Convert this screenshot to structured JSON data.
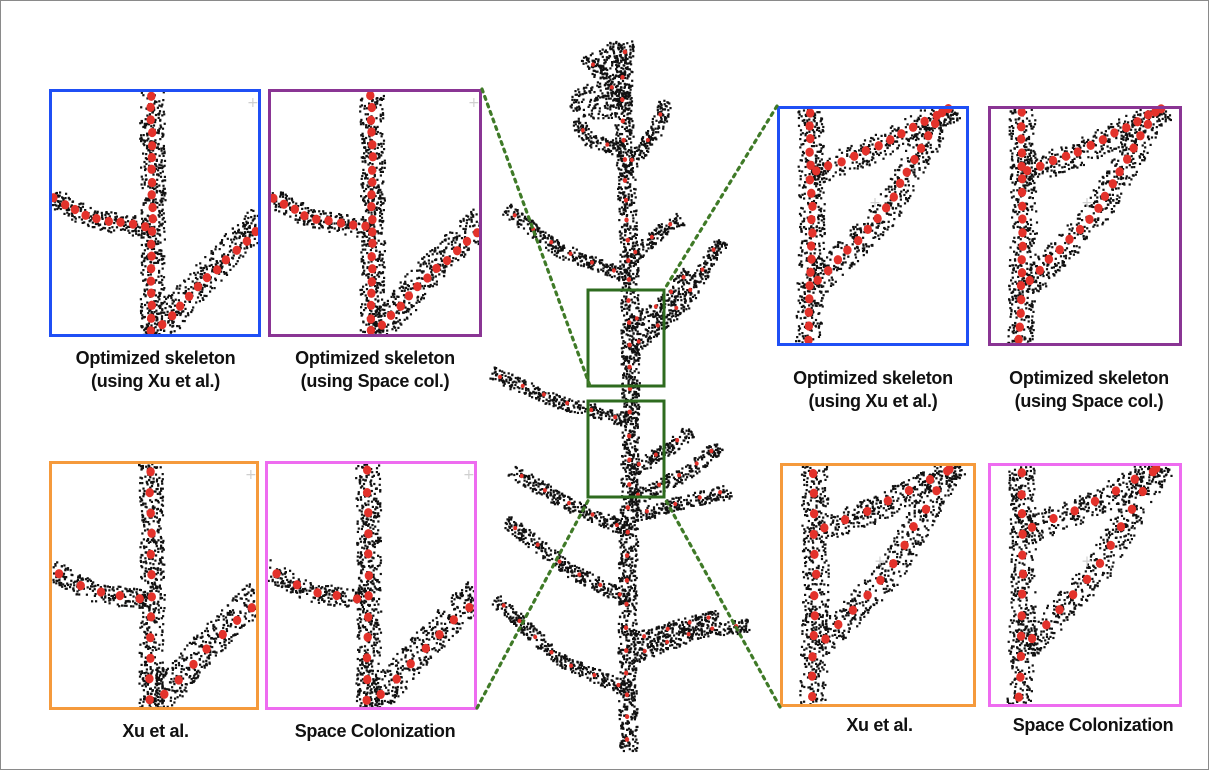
{
  "figure": {
    "left_group": {
      "top_row": [
        {
          "line1": "Optimized skeleton",
          "line2": "(using Xu et al.)",
          "frame_color": "#1f4ff5"
        },
        {
          "line1": "Optimized skeleton",
          "line2": "(using Space col.)",
          "frame_color": "#8a3594"
        }
      ],
      "bottom_row": [
        {
          "line1": "Xu et al.",
          "frame_color": "#f59a3c"
        },
        {
          "line1": "Space Colonization",
          "frame_color": "#ee6cf0"
        }
      ]
    },
    "right_group": {
      "top_row": [
        {
          "line1": "Optimized skeleton",
          "line2": "(using Xu et al.)",
          "frame_color": "#1f4ff5"
        },
        {
          "line1": "Optimized skeleton",
          "line2": "(using Space col.)",
          "frame_color": "#8a3594"
        }
      ],
      "bottom_row": [
        {
          "line1": "Xu et al.",
          "frame_color": "#f59a3c"
        },
        {
          "line1": "Space Colonization",
          "frame_color": "#ee6cf0"
        }
      ]
    },
    "colors": {
      "point_cloud": "#111111",
      "skeleton_nodes": "#e3322b",
      "zoom_region": "#2e6b1f",
      "connector": "#3f7a27"
    },
    "icons": [
      "plant-point-cloud",
      "zoom-region-box",
      "dotted-connector"
    ]
  }
}
